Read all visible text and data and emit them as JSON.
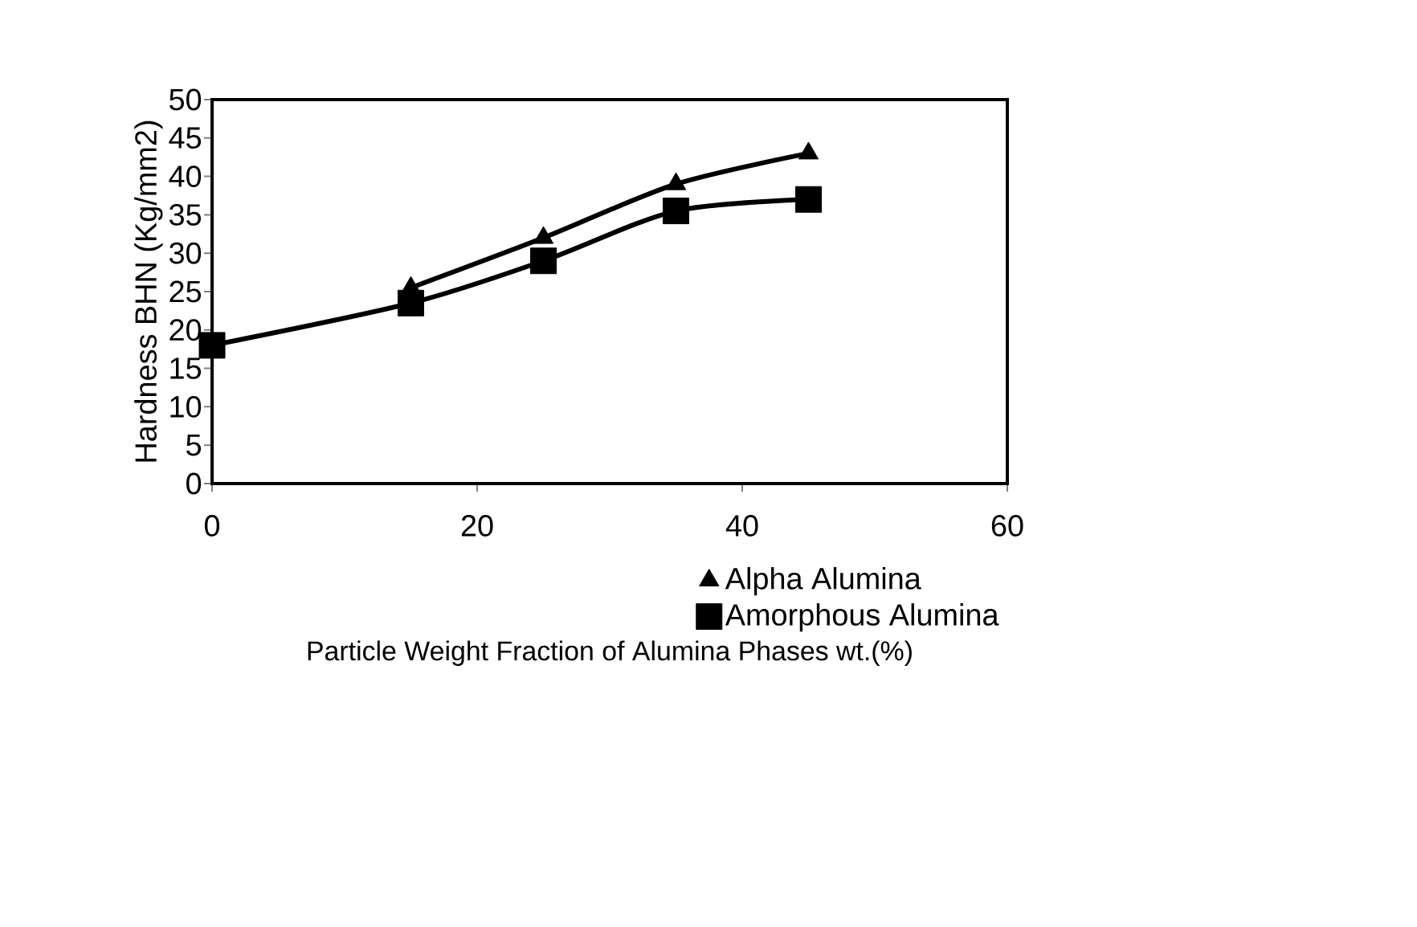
{
  "chart_data": {
    "type": "line",
    "xlabel": "Particle Weight Fraction of Alumina Phases wt.(%)",
    "ylabel": "Hardness BHN (Kg/mm2)",
    "x": [
      0,
      15,
      25,
      35,
      45
    ],
    "series": [
      {
        "name": "Alpha  Alumina",
        "color": "#000000",
        "marker": "triangle",
        "values": [
          null,
          25.5,
          32,
          39,
          43
        ]
      },
      {
        "name": "Amorphous Alumina",
        "color": "#000000",
        "marker": "square",
        "values": [
          18,
          23.5,
          29,
          35.5,
          37
        ]
      }
    ],
    "xlim": [
      0,
      60
    ],
    "xticks": [
      0,
      20,
      40,
      60
    ],
    "ylim": [
      0,
      50
    ],
    "yticks": [
      0,
      5,
      10,
      15,
      20,
      25,
      30,
      35,
      40,
      45,
      50
    ],
    "grid": false,
    "legend": "bottom right",
    "line_style": "solid"
  }
}
